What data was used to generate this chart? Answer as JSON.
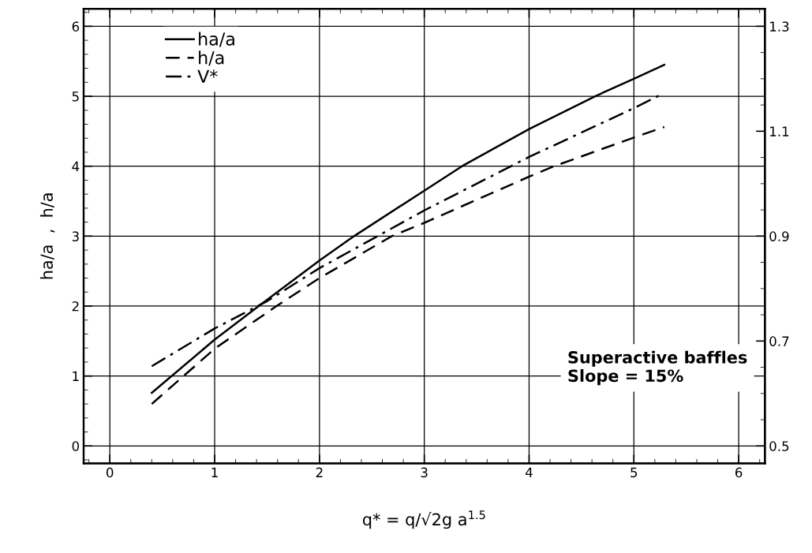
{
  "chart_data": {
    "type": "line",
    "xlabel": "q* = q/√2g a$^{1.5}$",
    "ylabel": "ha/a  ,  h/a",
    "xlim": [
      -0.25,
      6.25
    ],
    "xticks": [
      0,
      1,
      2,
      3,
      4,
      5,
      6
    ],
    "ylim": [
      -0.25,
      6.25
    ],
    "yticks": [
      0,
      1,
      2,
      3,
      4,
      5,
      6
    ],
    "y2lim": [
      0.4667,
      1.3333
    ],
    "y2ticks": [
      0.5,
      0.7,
      0.9,
      1.1,
      1.3
    ],
    "grid": true,
    "legend": "top left",
    "marker": "none",
    "series": [
      {
        "name": "ha/a",
        "color": "#000000",
        "line_style": "solid",
        "x": [
          0.4,
          1,
          1.42,
          2,
          2.33,
          3,
          3.36,
          4,
          4.63,
          5,
          5.29
        ],
        "values": [
          0.76,
          1.52,
          2,
          2.65,
          3,
          3.65,
          4,
          4.53,
          5,
          5.25,
          5.45
        ]
      },
      {
        "name": "h/a",
        "color": "#000000",
        "line_style": "dashed",
        "x": [
          0.4,
          1,
          1.59,
          2,
          2.69,
          3,
          4,
          4.24,
          5,
          5.29
        ],
        "values": [
          0.6,
          1.39,
          2,
          2.4,
          3,
          3.19,
          3.85,
          4,
          4.41,
          4.56
        ]
      },
      {
        "name": "V*",
        "color": "#000000",
        "line_style": "dashdot",
        "axis": "y2",
        "x": [
          0.4,
          1,
          1.5,
          2,
          3,
          4,
          5,
          5.27
        ],
        "values": [
          0.652,
          0.724,
          0.776,
          0.839,
          0.949,
          1.051,
          1.144,
          1.171
        ]
      }
    ],
    "annotations": [
      {
        "text": "Superactive baffles\nSlope = 15%"
      }
    ]
  }
}
